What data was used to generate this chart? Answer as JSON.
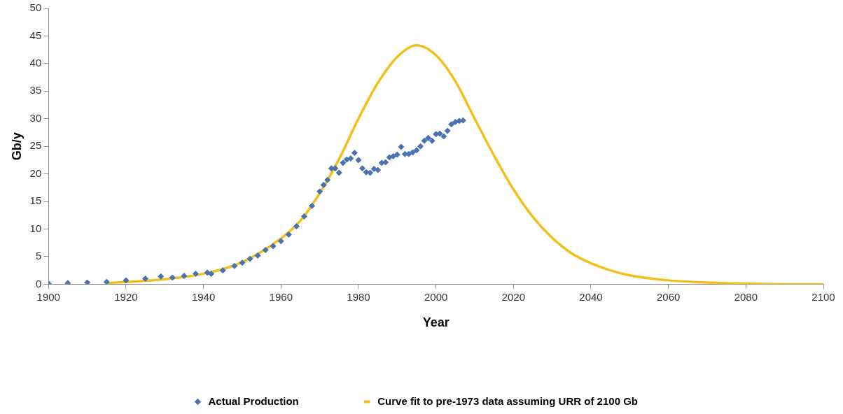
{
  "chart_data": {
    "type": "scatter",
    "xlabel": "Year",
    "ylabel": "Gb/y",
    "xlim": [
      1900,
      2100
    ],
    "xticks": [
      1900,
      1920,
      1940,
      1960,
      1980,
      2000,
      2020,
      2040,
      2060,
      2080,
      2100
    ],
    "ylim": [
      0,
      50
    ],
    "yticks": [
      0,
      5,
      10,
      15,
      20,
      25,
      30,
      35,
      40,
      45,
      50
    ],
    "grid": false,
    "legend": "bottom",
    "series": [
      {
        "name": "Actual Production",
        "marker": "diamond",
        "color": "#4a72b0",
        "x": [
          1900,
          1905,
          1910,
          1915,
          1920,
          1925,
          1929,
          1932,
          1935,
          1938,
          1941,
          1942,
          1945,
          1948,
          1950,
          1952,
          1954,
          1956,
          1958,
          1960,
          1962,
          1964,
          1966,
          1968,
          1970,
          1971,
          1972,
          1973,
          1974,
          1975,
          1976,
          1977,
          1978,
          1979,
          1980,
          1981,
          1982,
          1983,
          1984,
          1985,
          1986,
          1987,
          1988,
          1989,
          1990,
          1991,
          1992,
          1993,
          1994,
          1995,
          1996,
          1997,
          1998,
          1999,
          2000,
          2001,
          2002,
          2003,
          2004,
          2005,
          2006,
          2007
        ],
        "values": [
          0.1,
          0.2,
          0.3,
          0.4,
          0.7,
          1.0,
          1.4,
          1.2,
          1.5,
          1.9,
          2.1,
          1.9,
          2.5,
          3.3,
          3.9,
          4.6,
          5.2,
          6.2,
          6.9,
          7.8,
          9.0,
          10.5,
          12.3,
          14.2,
          16.8,
          18.0,
          18.9,
          21.0,
          21.0,
          20.2,
          22.0,
          22.6,
          22.8,
          23.8,
          22.5,
          21.0,
          20.3,
          20.2,
          20.9,
          20.7,
          22.0,
          22.1,
          23.0,
          23.2,
          23.5,
          24.9,
          23.6,
          23.6,
          23.9,
          24.3,
          25.0,
          26.0,
          26.5,
          26.0,
          27.2,
          27.3,
          26.8,
          27.8,
          29.0,
          29.4,
          29.6,
          29.7
        ]
      },
      {
        "name": "Curve fit to pre-1973 data assuming URR of 2100 Gb",
        "type": "line",
        "marker": "none",
        "line_style": "solid",
        "color": "#f2c01e",
        "x": [
          1915,
          1920,
          1930,
          1940,
          1950,
          1960,
          1965,
          1970,
          1975,
          1980,
          1985,
          1990,
          1995,
          2000,
          2005,
          2010,
          2015,
          2020,
          2025,
          2030,
          2035,
          2040,
          2045,
          2050,
          2060,
          2070,
          2080,
          2090,
          2100
        ],
        "values": [
          0.2,
          0.4,
          0.9,
          1.9,
          4.0,
          8.3,
          11.5,
          16.5,
          22.7,
          30,
          36.5,
          41.2,
          43.3,
          41.5,
          36.8,
          30,
          23.3,
          17.2,
          12.2,
          8.4,
          5.6,
          3.8,
          2.5,
          1.6,
          0.7,
          0.3,
          0.1,
          0,
          0
        ]
      }
    ]
  }
}
